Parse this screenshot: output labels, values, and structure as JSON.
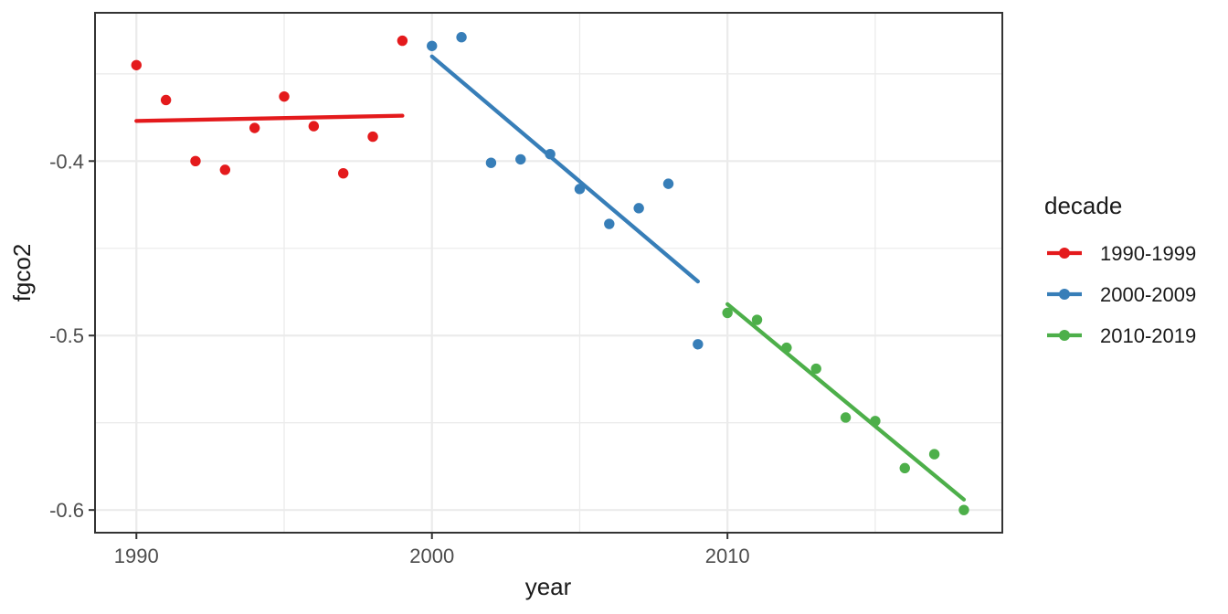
{
  "chart_data": {
    "type": "scatter",
    "title": "",
    "xlabel": "year",
    "ylabel": "fgco2",
    "grid": true,
    "panel_background": "#ffffff",
    "grid_color": "#ebebeb",
    "panel_border_color": "#333333",
    "tick_text_color": "#4d4d4d",
    "title_text_color": "#1a1a1a",
    "x_axis": {
      "range": [
        1988.6,
        2019.3
      ],
      "ticks": [
        1990,
        2000,
        2010
      ],
      "tick_labels": [
        "1990",
        "2000",
        "2010"
      ],
      "minor_ticks": [
        1995,
        2005,
        2015
      ]
    },
    "y_axis": {
      "range": [
        -0.613,
        -0.315
      ],
      "ticks": [
        -0.4,
        -0.5,
        -0.6
      ],
      "tick_labels": [
        "-0.4",
        "-0.5",
        "-0.6"
      ],
      "minor_ticks": [
        -0.35,
        -0.45,
        -0.55
      ]
    },
    "legend": {
      "title": "decade",
      "position": "right"
    },
    "series": [
      {
        "name": "1990-1999",
        "color": "#E41A1C",
        "x": [
          1990,
          1991,
          1992,
          1993,
          1994,
          1995,
          1996,
          1997,
          1998,
          1999
        ],
        "y": [
          -0.345,
          -0.365,
          -0.4,
          -0.405,
          -0.381,
          -0.363,
          -0.38,
          -0.407,
          -0.386,
          -0.331
        ],
        "trend_x": [
          1990,
          1999
        ],
        "trend_y": [
          -0.377,
          -0.374
        ]
      },
      {
        "name": "2000-2009",
        "color": "#377EB8",
        "x": [
          2000,
          2001,
          2002,
          2003,
          2004,
          2005,
          2006,
          2007,
          2008,
          2009
        ],
        "y": [
          -0.334,
          -0.329,
          -0.401,
          -0.399,
          -0.396,
          -0.416,
          -0.436,
          -0.427,
          -0.413,
          -0.505
        ],
        "trend_x": [
          2000,
          2009
        ],
        "trend_y": [
          -0.34,
          -0.469
        ]
      },
      {
        "name": "2010-2019",
        "color": "#4DAF4A",
        "x": [
          2010,
          2011,
          2012,
          2013,
          2014,
          2015,
          2016,
          2017,
          2018
        ],
        "y": [
          -0.487,
          -0.491,
          -0.507,
          -0.519,
          -0.547,
          -0.549,
          -0.576,
          -0.568,
          -0.6
        ],
        "trend_x": [
          2010,
          2018
        ],
        "trend_y": [
          -0.482,
          -0.594
        ]
      }
    ]
  }
}
